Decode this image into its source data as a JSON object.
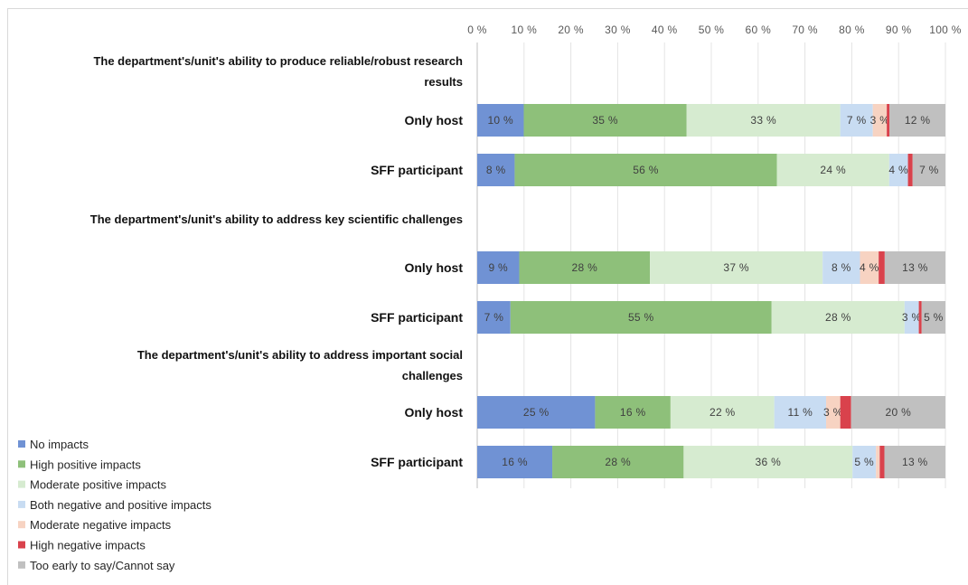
{
  "chart_data": {
    "type": "bar",
    "orientation": "horizontal",
    "stacked": true,
    "percent_stacked": true,
    "xlim": [
      0,
      100
    ],
    "x_ticks": [
      "0 %",
      "10 %",
      "20 %",
      "30 %",
      "40 %",
      "50 %",
      "60 %",
      "70 %",
      "80 %",
      "90 %",
      "100 %"
    ],
    "grid": "vertical",
    "legend_position": "bottom-left",
    "series": [
      {
        "name": "No impacts",
        "color": "#7092d4"
      },
      {
        "name": "High positive impacts",
        "color": "#8ec07a"
      },
      {
        "name": "Moderate positive impacts",
        "color": "#d6ebd0"
      },
      {
        "name": "Both negative and positive impacts",
        "color": "#c8dcf2"
      },
      {
        "name": "Moderate negative impacts",
        "color": "#f7d3c2"
      },
      {
        "name": "High negative impacts",
        "color": "#d9424c"
      },
      {
        "name": "Too early to say/Cannot say",
        "color": "#c0c0c0"
      }
    ],
    "groups": [
      {
        "title_lines": [
          "The department's/unit's ability to produce reliable/robust research",
          "results"
        ],
        "bars": [
          {
            "category": "Only host",
            "values": [
              10,
              35,
              33,
              7,
              3,
              0.6,
              12
            ],
            "labels": [
              "10 %",
              "35 %",
              "33 %",
              "7 %",
              "3 %",
              "",
              "12 %"
            ]
          },
          {
            "category": "SFF participant",
            "values": [
              8,
              56,
              24,
              4,
              0,
              1,
              7
            ],
            "labels": [
              "8 %",
              "56 %",
              "24 %",
              "4 %",
              "",
              "",
              "7 %"
            ]
          }
        ]
      },
      {
        "title_lines": [
          "The department's/unit's ability to address key scientific challenges"
        ],
        "bars": [
          {
            "category": "Only host",
            "values": [
              9,
              28,
              37,
              8,
              4,
              1.3,
              13
            ],
            "labels": [
              "9 %",
              "28 %",
              "37 %",
              "8 %",
              "4 %",
              "",
              "13 %"
            ]
          },
          {
            "category": "SFF participant",
            "values": [
              7,
              55,
              28,
              3,
              0,
              0.6,
              5
            ],
            "labels": [
              "7 %",
              "55 %",
              "28 %",
              "3 %",
              "",
              "",
              "5 %"
            ]
          }
        ]
      },
      {
        "title_lines": [
          "The department's/unit's ability to address important social",
          "challenges"
        ],
        "bars": [
          {
            "category": "Only host",
            "values": [
              25,
              16,
              22,
              11,
              3,
              2.3,
              20
            ],
            "labels": [
              "25 %",
              "16 %",
              "22 %",
              "11 %",
              "3 %",
              "",
              "20 %"
            ]
          },
          {
            "category": "SFF participant",
            "values": [
              16,
              28,
              36,
              5,
              0.8,
              1,
              13
            ],
            "labels": [
              "16 %",
              "28 %",
              "36 %",
              "5 %",
              "",
              "",
              "13 %"
            ]
          }
        ]
      }
    ]
  }
}
